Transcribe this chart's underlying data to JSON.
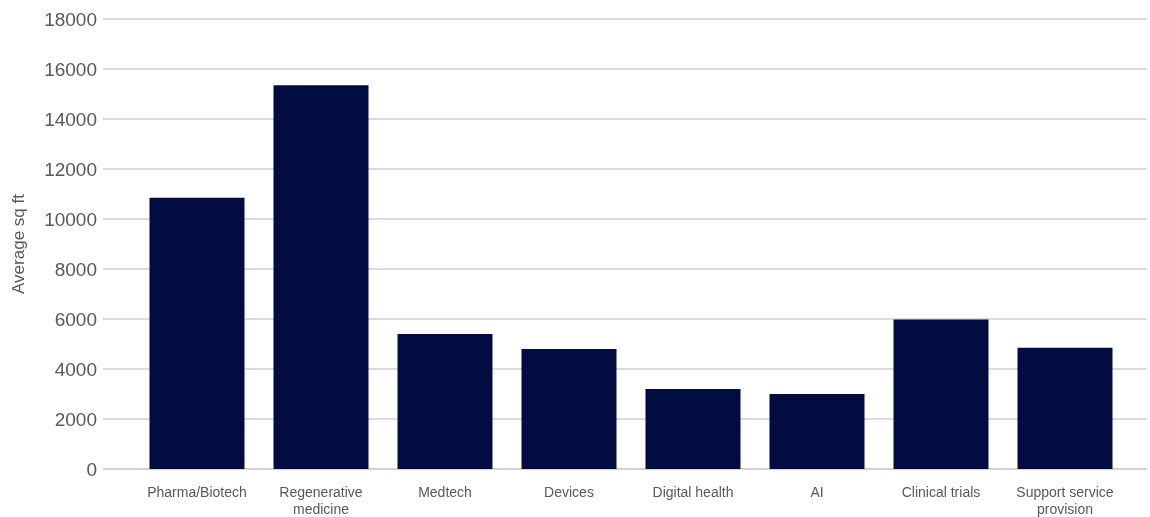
{
  "chart_data": {
    "type": "bar",
    "ylabel": "Average sq ft",
    "categories": [
      "Pharma/Biotech",
      "Regenerative medicine",
      "Medtech",
      "Devices",
      "Digital health",
      "AI",
      "Clinical trials",
      "Support service provision"
    ],
    "values": [
      10850,
      15350,
      5400,
      4800,
      3200,
      3000,
      5980,
      4850
    ],
    "color": "#020c40",
    "ylim": [
      0,
      18000
    ],
    "yticks": [
      0,
      2000,
      4000,
      6000,
      8000,
      10000,
      12000,
      14000,
      16000,
      18000
    ],
    "grid": "y"
  }
}
